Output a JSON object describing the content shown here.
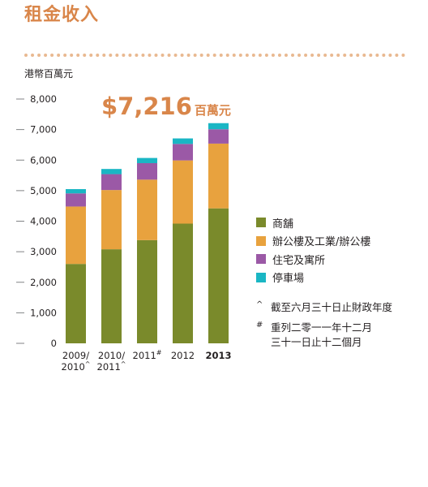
{
  "title": "租金收入",
  "unit_label": "港幣百萬元",
  "headline": {
    "value": "$7,216",
    "suffix": "百萬元"
  },
  "colors": {
    "accent": "#d9864a",
    "dots": "#e9b991",
    "axis": "#808285",
    "text": "#231f20"
  },
  "chart_data": {
    "type": "bar",
    "stacked": true,
    "categories": [
      {
        "lines": [
          "2009/",
          "2010"
        ],
        "mark": "^",
        "bold": false
      },
      {
        "lines": [
          "2010/",
          "2011"
        ],
        "mark": "^",
        "bold": false
      },
      {
        "lines": [
          "2011"
        ],
        "mark": "#",
        "bold": false
      },
      {
        "lines": [
          "2012"
        ],
        "mark": "",
        "bold": false
      },
      {
        "lines": [
          "2013"
        ],
        "mark": "",
        "bold": true
      }
    ],
    "series": [
      {
        "name": "商舖",
        "color": "#7a8a2b",
        "values": [
          2600,
          3080,
          3380,
          3920,
          4420
        ]
      },
      {
        "name": "辦公樓及工業/辦公樓",
        "color": "#e8a23e",
        "values": [
          1880,
          1940,
          1980,
          2070,
          2120
        ]
      },
      {
        "name": "住宅及寓所",
        "color": "#9b59a6",
        "values": [
          430,
          520,
          540,
          540,
          470
        ]
      },
      {
        "name": "停車場",
        "color": "#1ab6c4",
        "values": [
          140,
          170,
          170,
          180,
          200
        ]
      }
    ],
    "ylim": [
      0,
      8000
    ],
    "yticks": [
      "0",
      "1,000",
      "2,000",
      "3,000",
      "4,000",
      "5,000",
      "6,000",
      "7,000",
      "8,000"
    ],
    "xlabel": "",
    "ylabel": "港幣百萬元"
  },
  "legend": [
    "商舖",
    "辦公樓及工業/辦公樓",
    "住宅及寓所",
    "停車場"
  ],
  "notes": [
    {
      "mark": "^",
      "lines": [
        "截至六月三十日止財政年度"
      ]
    },
    {
      "mark": "#",
      "lines": [
        "重列二零一一年十二月",
        "三十一日止十二個月"
      ]
    }
  ]
}
